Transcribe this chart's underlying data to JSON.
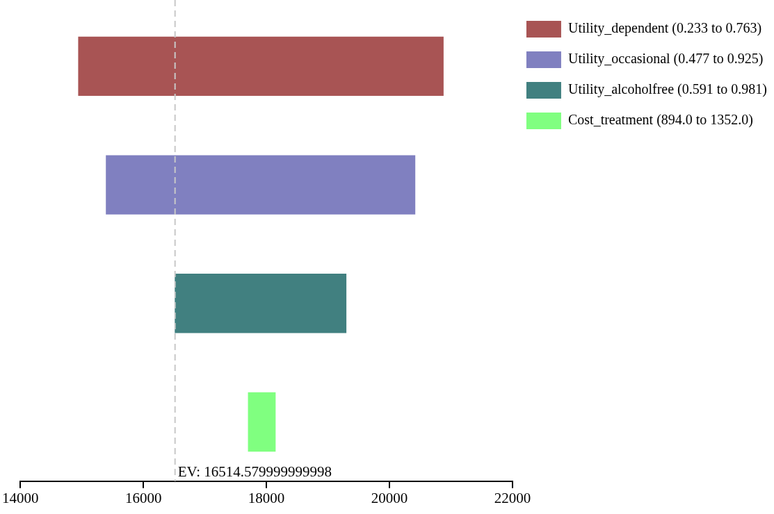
{
  "chart_data": {
    "type": "bar",
    "orientation": "horizontal",
    "categories": [
      null,
      null,
      null,
      null
    ],
    "series": [
      {
        "name": "Utility_dependent (0.233 to 0.763)",
        "color": "#a85454",
        "base": [
          14940,
          null,
          null,
          null
        ],
        "values": [
          5940,
          null,
          null,
          null
        ]
      },
      {
        "name": "Utility_occasional (0.477 to 0.925)",
        "color": "#8080c0",
        "base": [
          null,
          15390,
          null,
          null
        ],
        "values": [
          null,
          5030,
          null,
          null
        ]
      },
      {
        "name": "Utility_alcoholfree (0.591 to 0.981)",
        "color": "#418080",
        "base": [
          null,
          null,
          16510,
          null
        ],
        "values": [
          null,
          null,
          2790,
          null
        ]
      },
      {
        "name": "Cost_treatment (894.0 to 1352.0)",
        "color": "#80ff80",
        "base": [
          null,
          null,
          null,
          17700
        ],
        "values": [
          null,
          null,
          null,
          450
        ]
      }
    ],
    "xlim": [
      14000,
      22000
    ],
    "xticks": [
      14000,
      16000,
      18000,
      20000,
      22000
    ],
    "ref_lines": [
      {
        "axis": "x",
        "value": 16514.579999999998,
        "label": "EV: 16514.579999999998",
        "color": "#c8c8c8",
        "line_style": "dashed"
      }
    ],
    "tick_labels": "x",
    "grid": false,
    "legend": "top right"
  }
}
